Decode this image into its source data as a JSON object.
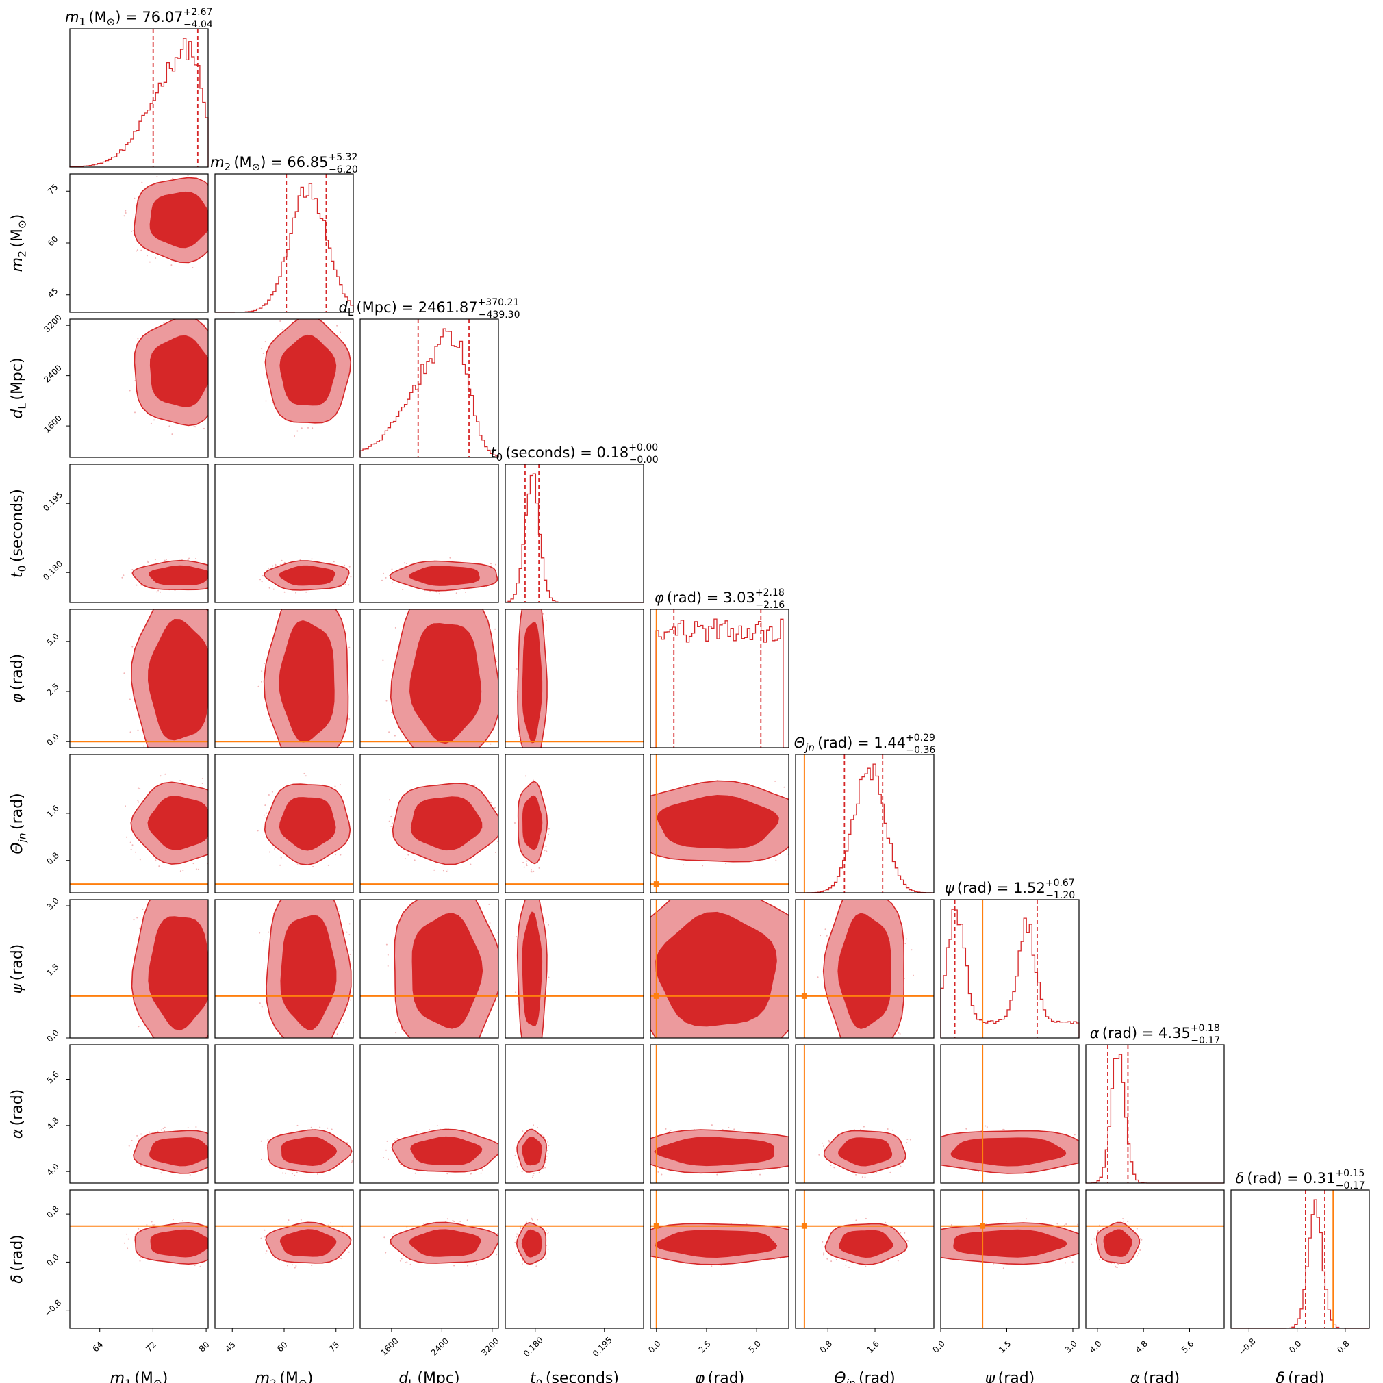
{
  "chart_data": {
    "type": "corner",
    "parameters": [
      {
        "key": "m1",
        "label": "m",
        "sub": "1",
        "unit": "(M",
        "unit_sub": "⊙",
        "unit_end": ")",
        "title_value": "76.07",
        "title_plus": "+2.67",
        "title_minus": "−4.04",
        "range": [
          59.5,
          80.3
        ],
        "ticks": [
          64,
          72,
          80
        ],
        "tick_labels": [
          "64",
          "72",
          "80"
        ],
        "median": 76.07,
        "q_low": 72.03,
        "q_high": 78.74,
        "injected": null,
        "hist": {
          "type": "peak",
          "mu": 77.5,
          "sigma": 3.2,
          "skew": -1.0,
          "cut_high": 80.1
        }
      },
      {
        "key": "m2",
        "label": "m",
        "sub": "2",
        "unit": "(M",
        "unit_sub": "⊙",
        "unit_end": ")",
        "title_value": "66.85",
        "title_plus": "+5.32",
        "title_minus": "−6.20",
        "range": [
          40,
          80
        ],
        "ticks": [
          45,
          60,
          75
        ],
        "tick_labels": [
          "45",
          "60",
          "75"
        ],
        "median": 66.85,
        "q_low": 60.65,
        "q_high": 72.17,
        "injected": null,
        "hist": {
          "type": "gauss",
          "mu": 67.0,
          "sigma": 5.3
        }
      },
      {
        "key": "dL",
        "label": "d",
        "sub": "L",
        "unit": "(Mpc)",
        "unit_sub": "",
        "unit_end": "",
        "title_value": "2461.87",
        "title_plus": "+370.21",
        "title_minus": "−439.30",
        "range": [
          1100,
          3300
        ],
        "ticks": [
          1600,
          2400,
          3200
        ],
        "tick_labels": [
          "1600",
          "2400",
          "3200"
        ],
        "median": 2461.87,
        "q_low": 2022.57,
        "q_high": 2832.08,
        "injected": null,
        "hist": {
          "type": "peak",
          "mu": 2600,
          "sigma": 380,
          "skew": -0.8,
          "cut_high": 3300
        }
      },
      {
        "key": "t0",
        "label": "t",
        "sub": "0",
        "unit": "(seconds)",
        "unit_sub": "",
        "unit_end": "",
        "title_value": "0.18",
        "title_plus": "+0.00",
        "title_minus": "−0.00",
        "range": [
          0.1735,
          0.2035
        ],
        "ticks": [
          0.18,
          0.195
        ],
        "tick_labels": [
          "0.180",
          "0.195"
        ],
        "median": 0.1793,
        "q_low": 0.1778,
        "q_high": 0.1808,
        "injected": null,
        "hist": {
          "type": "gauss",
          "mu": 0.1793,
          "sigma": 0.0016
        }
      },
      {
        "key": "phi",
        "label": "φ",
        "sub": "",
        "unit": "(rad)",
        "unit_sub": "",
        "unit_end": "",
        "title_value": "3.03",
        "title_plus": "+2.18",
        "title_minus": "−2.16",
        "range": [
          -0.3,
          6.6
        ],
        "ticks": [
          0.0,
          2.5,
          5.0
        ],
        "tick_labels": [
          "0.0",
          "2.5",
          "5.0"
        ],
        "median": 3.03,
        "q_low": 0.87,
        "q_high": 5.21,
        "injected": 0.0,
        "hist": {
          "type": "flat",
          "lo": 0.0,
          "hi": 6.28
        }
      },
      {
        "key": "theta_jn",
        "label": "Θ",
        "sub": "jn",
        "unit": "(rad)",
        "unit_sub": "",
        "unit_end": "",
        "title_value": "1.44",
        "title_plus": "+0.29",
        "title_minus": "−0.36",
        "range": [
          0.25,
          2.6
        ],
        "ticks": [
          0.8,
          1.6
        ],
        "tick_labels": [
          "0.8",
          "1.6"
        ],
        "median": 1.44,
        "q_low": 1.08,
        "q_high": 1.73,
        "injected": 0.4,
        "hist": {
          "type": "gauss",
          "mu": 1.5,
          "sigma": 0.26
        }
      },
      {
        "key": "psi",
        "label": "ψ",
        "sub": "",
        "unit": "(rad)",
        "unit_sub": "",
        "unit_end": "",
        "title_value": "1.52",
        "title_plus": "+0.67",
        "title_minus": "−1.20",
        "range": [
          0.0,
          3.14
        ],
        "ticks": [
          0.0,
          1.5,
          3.0
        ],
        "tick_labels": [
          "0.0",
          "1.5",
          "3.0"
        ],
        "median": 1.52,
        "q_low": 0.32,
        "q_high": 2.19,
        "injected": 0.95,
        "hist": {
          "type": "bimodal",
          "mu1": 0.35,
          "s1": 0.2,
          "mu2": 1.95,
          "s2": 0.2
        }
      },
      {
        "key": "alpha",
        "label": "α",
        "sub": "",
        "unit": "(rad)",
        "unit_sub": "",
        "unit_end": "",
        "title_value": "4.35",
        "title_plus": "+0.18",
        "title_minus": "−0.17",
        "range": [
          3.8,
          6.2
        ],
        "ticks": [
          4.0,
          4.8,
          5.6
        ],
        "tick_labels": [
          "4.0",
          "4.8",
          "5.6"
        ],
        "median": 4.35,
        "q_low": 4.18,
        "q_high": 4.53,
        "injected": null,
        "hist": {
          "type": "gauss",
          "mu": 4.36,
          "sigma": 0.12
        }
      },
      {
        "key": "delta",
        "label": "δ",
        "sub": "",
        "unit": "(rad)",
        "unit_sub": "",
        "unit_end": "",
        "title_value": "0.31",
        "title_plus": "+0.15",
        "title_minus": "−0.17",
        "range": [
          -1.1,
          1.2
        ],
        "ticks": [
          -0.8,
          0.0,
          0.8
        ],
        "tick_labels": [
          "−0.8",
          "0.0",
          "0.8"
        ],
        "median": 0.31,
        "q_low": 0.14,
        "q_high": 0.46,
        "injected": 0.6,
        "hist": {
          "type": "gauss",
          "mu": 0.3,
          "sigma": 0.12
        }
      }
    ],
    "colors": {
      "posterior": "#d62728",
      "contour_fill_inner": "#d62728",
      "contour_fill_outer": "#ec9a9d",
      "injection": "#ff7f0e",
      "quantile": "#d62728"
    },
    "grid": false
  }
}
